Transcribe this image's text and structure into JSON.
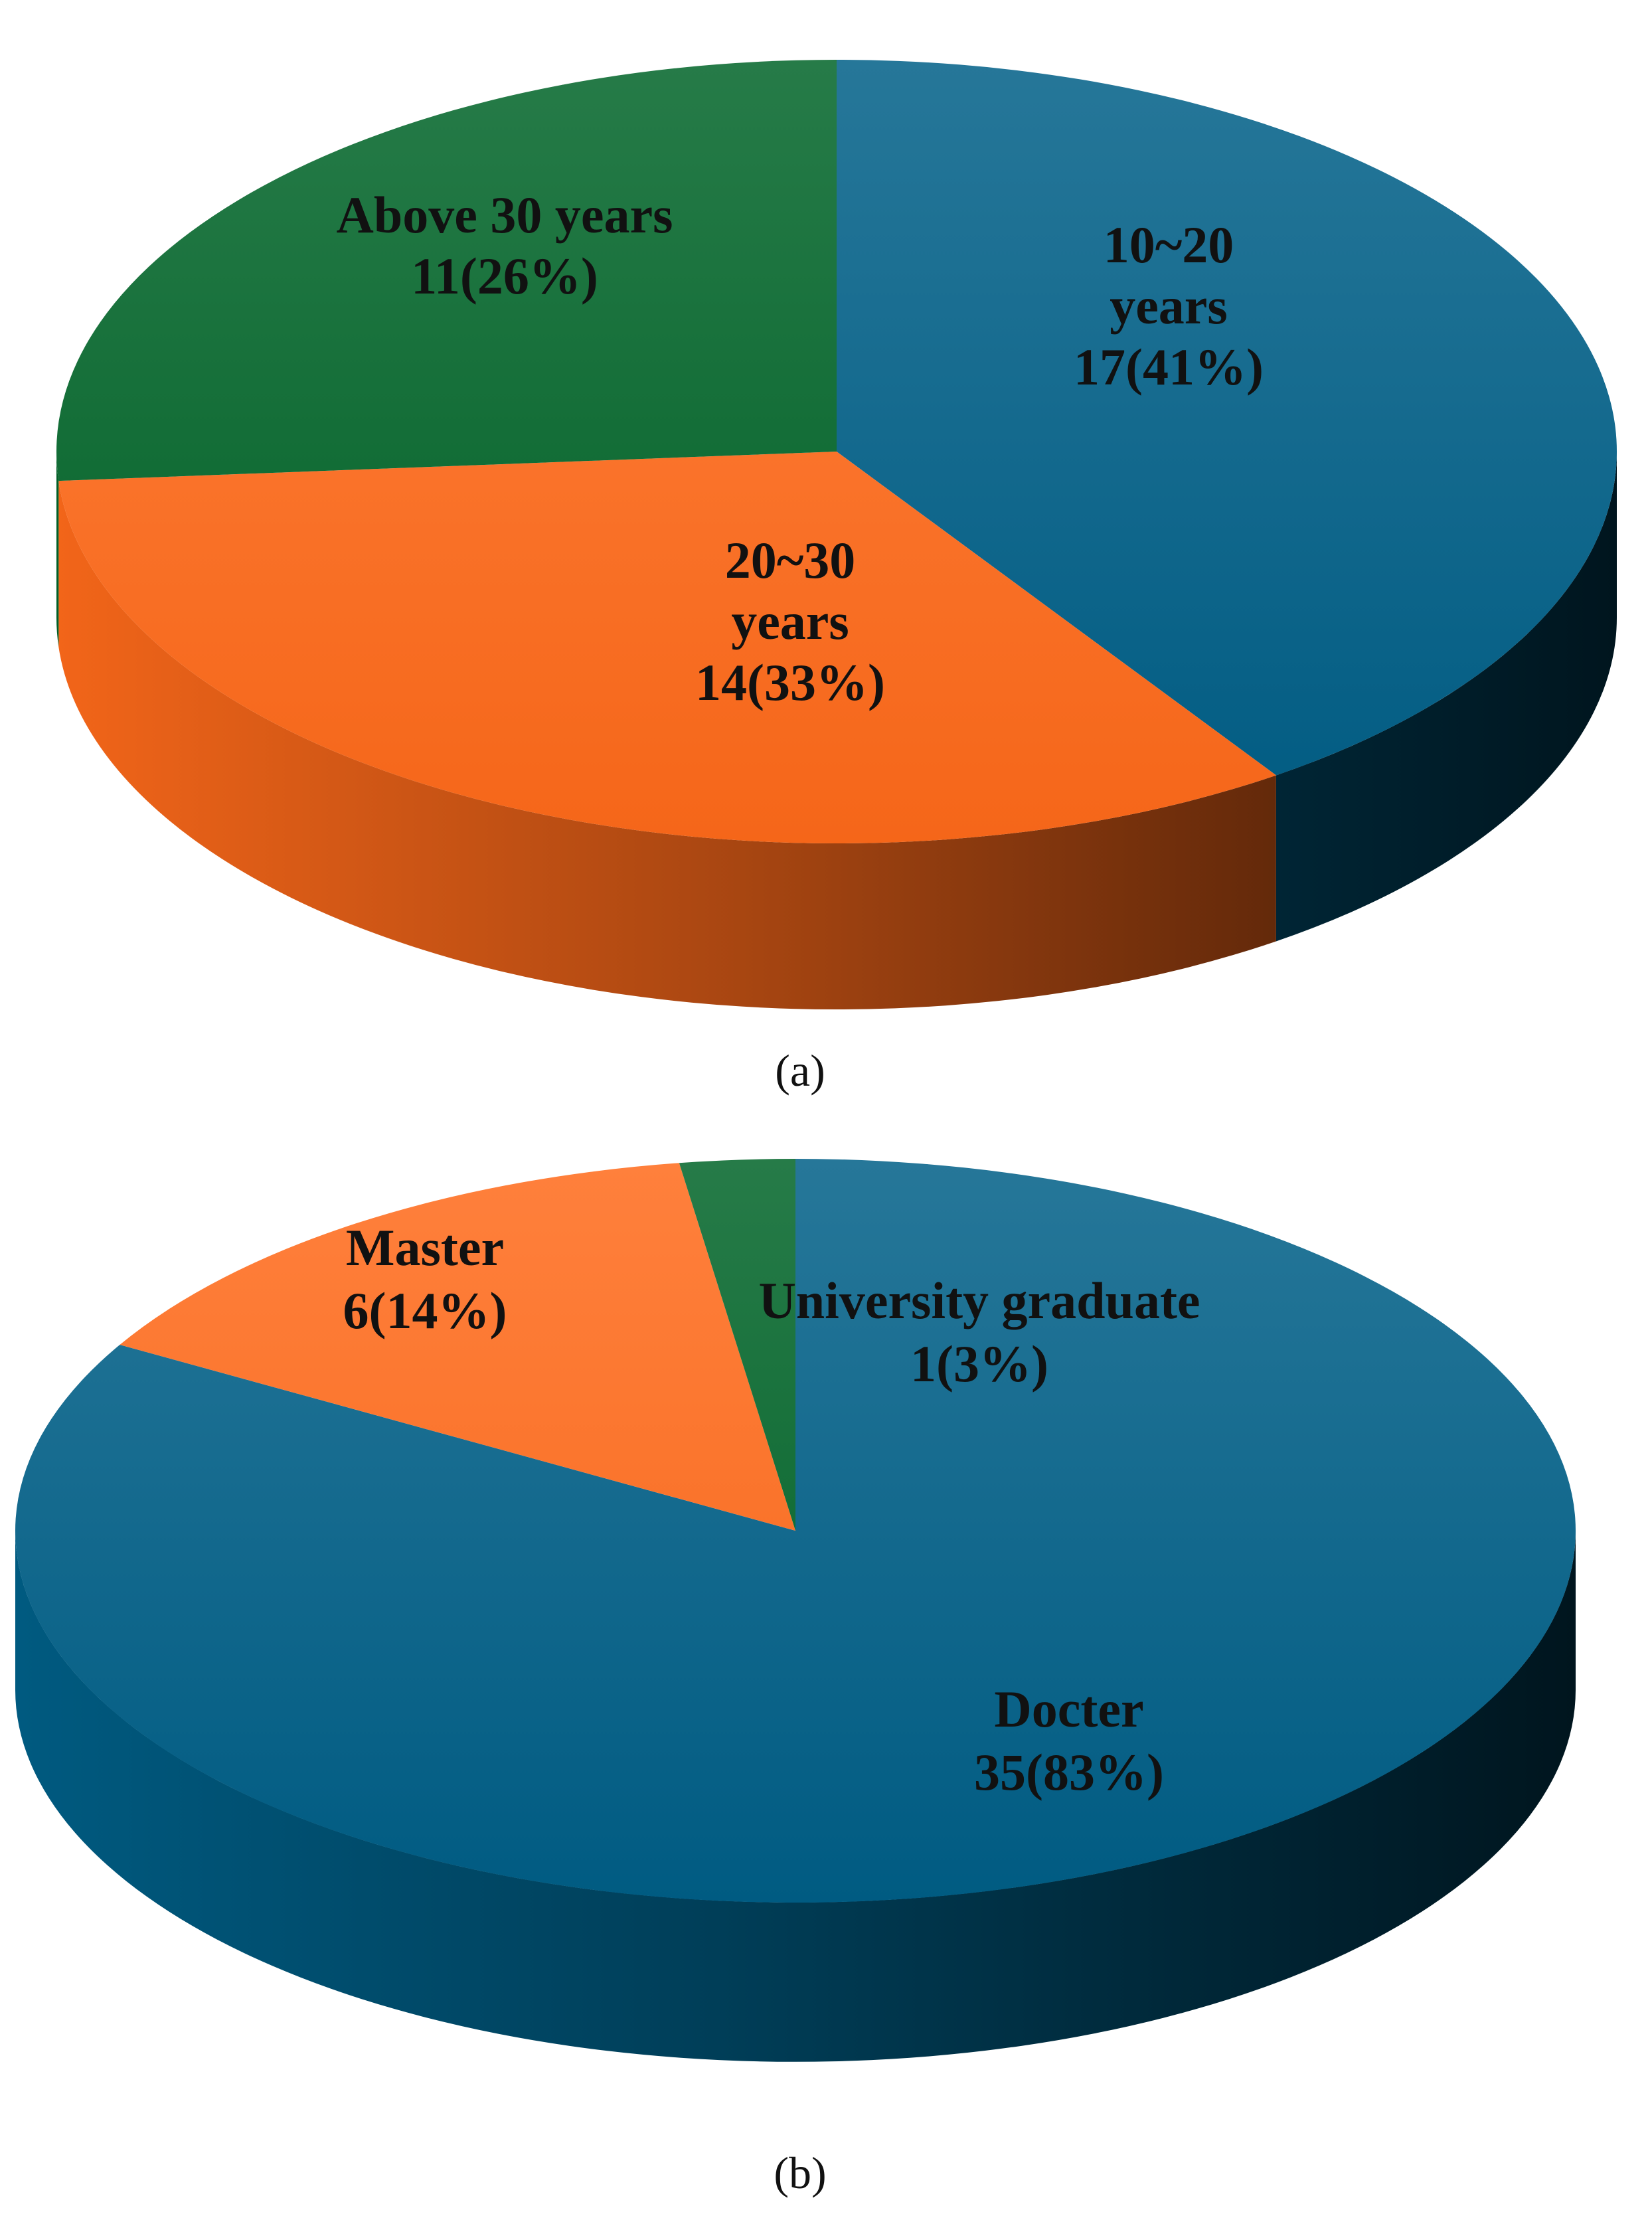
{
  "chart_data": [
    {
      "type": "pie",
      "panel_label": "(a)",
      "categories": [
        "10~20 years",
        "20~30 years",
        "Above 30 years"
      ],
      "values": [
        17,
        14,
        11
      ],
      "percents": [
        41,
        33,
        26
      ],
      "label_lines": [
        [
          "10~20",
          "years",
          "17(41%)"
        ],
        [
          "20~30",
          "years",
          "14(33%)"
        ],
        [
          "Above 30 years",
          "11(26%)"
        ]
      ],
      "colors": [
        "#005f87",
        "#ff6a1a",
        "#006428"
      ],
      "style": "3d"
    },
    {
      "type": "pie",
      "panel_label": "(b)",
      "categories": [
        "Docter",
        "Master",
        "University graduate"
      ],
      "values": [
        35,
        6,
        1
      ],
      "percents": [
        83,
        14,
        3
      ],
      "label_lines": [
        [
          "Docter",
          "35(83%)"
        ],
        [
          "Master",
          "6(14%)"
        ],
        [
          "University graduate",
          "1(3%)"
        ]
      ],
      "colors": [
        "#005f87",
        "#ff6a1a",
        "#006428"
      ],
      "style": "3d"
    }
  ]
}
